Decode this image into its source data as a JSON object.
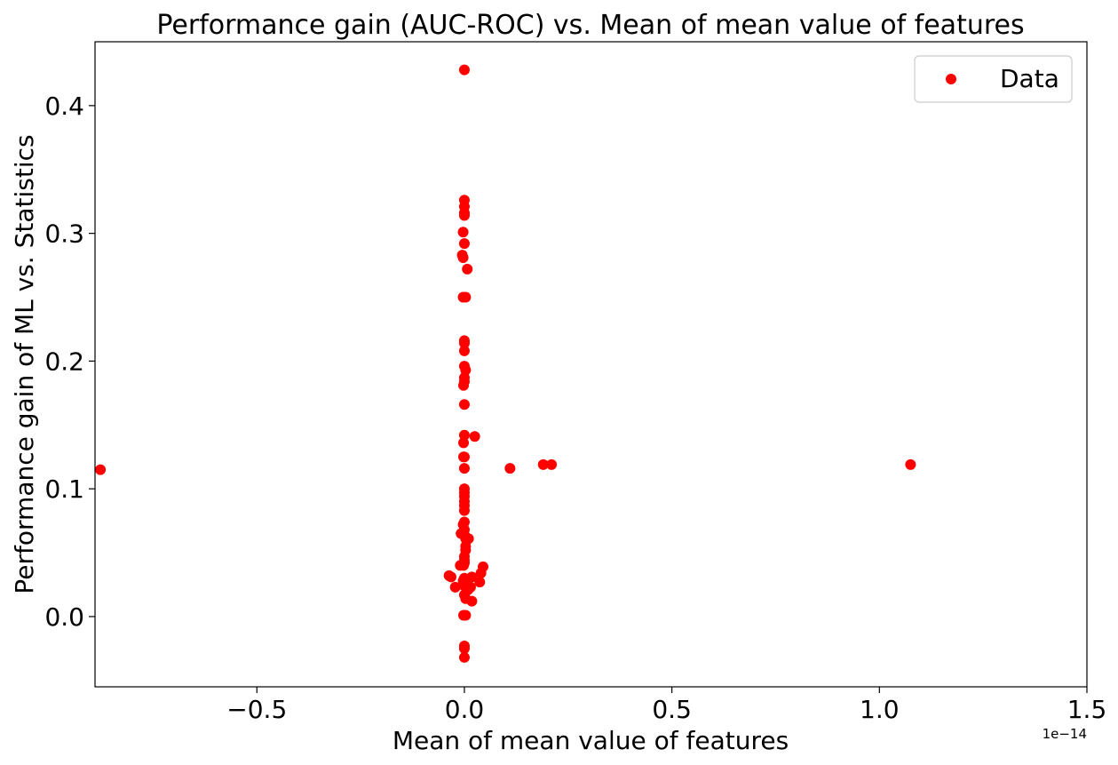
{
  "chart_data": {
    "type": "scatter",
    "title": "Performance gain (AUC-ROC) vs. Mean of mean value of features",
    "xlabel": "Mean of mean value of features",
    "ylabel": "Performance gain of ML vs. Statistics",
    "x_offset_label": "1e−14",
    "xlim": [
      -0.89,
      1.5
    ],
    "ylim": [
      -0.055,
      0.45
    ],
    "xticks": [
      {
        "value": -0.5,
        "label": "−0.5"
      },
      {
        "value": 0.0,
        "label": "0.0"
      },
      {
        "value": 0.5,
        "label": "0.5"
      },
      {
        "value": 1.0,
        "label": "1.0"
      },
      {
        "value": 1.5,
        "label": "1.5"
      }
    ],
    "yticks": [
      {
        "value": 0.0,
        "label": "0.0"
      },
      {
        "value": 0.1,
        "label": "0.1"
      },
      {
        "value": 0.2,
        "label": "0.2"
      },
      {
        "value": 0.3,
        "label": "0.3"
      },
      {
        "value": 0.4,
        "label": "0.4"
      }
    ],
    "grid": false,
    "legend": {
      "position": "top-right",
      "entries": [
        "Data"
      ]
    },
    "series": [
      {
        "name": "Data",
        "color": "#ff0000",
        "marker": "circle",
        "points": [
          [
            0.0,
            0.428
          ],
          [
            0.0,
            0.326
          ],
          [
            0.0,
            0.321
          ],
          [
            0.0,
            0.316
          ],
          [
            0.0,
            0.314
          ],
          [
            -0.003,
            0.301
          ],
          [
            0.0,
            0.292
          ],
          [
            -0.005,
            0.283
          ],
          [
            -0.003,
            0.281
          ],
          [
            0.007,
            0.272
          ],
          [
            -0.003,
            0.25
          ],
          [
            0.003,
            0.25
          ],
          [
            0.0,
            0.216
          ],
          [
            0.0,
            0.214
          ],
          [
            0.0,
            0.208
          ],
          [
            0.0,
            0.196
          ],
          [
            0.003,
            0.193
          ],
          [
            0.0,
            0.187
          ],
          [
            0.0,
            0.184
          ],
          [
            -0.002,
            0.181
          ],
          [
            0.0,
            0.166
          ],
          [
            0.0,
            0.142
          ],
          [
            0.025,
            0.141
          ],
          [
            -0.002,
            0.136
          ],
          [
            0.0,
            0.125
          ],
          [
            -0.002,
            0.125
          ],
          [
            0.0,
            0.116
          ],
          [
            -0.877,
            0.115
          ],
          [
            0.11,
            0.116
          ],
          [
            0.19,
            0.119
          ],
          [
            0.21,
            0.119
          ],
          [
            1.075,
            0.119
          ],
          [
            0.0,
            0.1
          ],
          [
            0.0,
            0.097
          ],
          [
            0.0,
            0.094
          ],
          [
            0.0,
            0.09
          ],
          [
            0.0,
            0.087
          ],
          [
            0.0,
            0.083
          ],
          [
            0.0,
            0.074
          ],
          [
            -0.003,
            0.072
          ],
          [
            0.0,
            0.068
          ],
          [
            -0.008,
            0.065
          ],
          [
            0.0,
            0.064
          ],
          [
            0.003,
            0.061
          ],
          [
            0.01,
            0.061
          ],
          [
            0.003,
            0.055
          ],
          [
            0.003,
            0.052
          ],
          [
            0.0,
            0.047
          ],
          [
            0.0,
            0.044
          ],
          [
            0.0,
            0.042
          ],
          [
            -0.002,
            0.04
          ],
          [
            -0.01,
            0.04
          ],
          [
            0.045,
            0.039
          ],
          [
            0.04,
            0.034
          ],
          [
            -0.037,
            0.032
          ],
          [
            -0.032,
            0.031
          ],
          [
            0.018,
            0.031
          ],
          [
            0.0,
            0.03
          ],
          [
            -0.003,
            0.028
          ],
          [
            0.007,
            0.028
          ],
          [
            0.037,
            0.027
          ],
          [
            0.0,
            0.025
          ],
          [
            0.0,
            0.024
          ],
          [
            -0.022,
            0.023
          ],
          [
            0.015,
            0.023
          ],
          [
            0.009,
            0.021
          ],
          [
            0.0,
            0.017
          ],
          [
            0.003,
            0.014
          ],
          [
            0.018,
            0.012
          ],
          [
            0.0,
            0.001
          ],
          [
            0.003,
            0.001
          ],
          [
            -0.002,
            0.001
          ],
          [
            0.0,
            -0.023
          ],
          [
            0.0,
            -0.025
          ],
          [
            0.0,
            -0.032
          ]
        ]
      }
    ]
  }
}
